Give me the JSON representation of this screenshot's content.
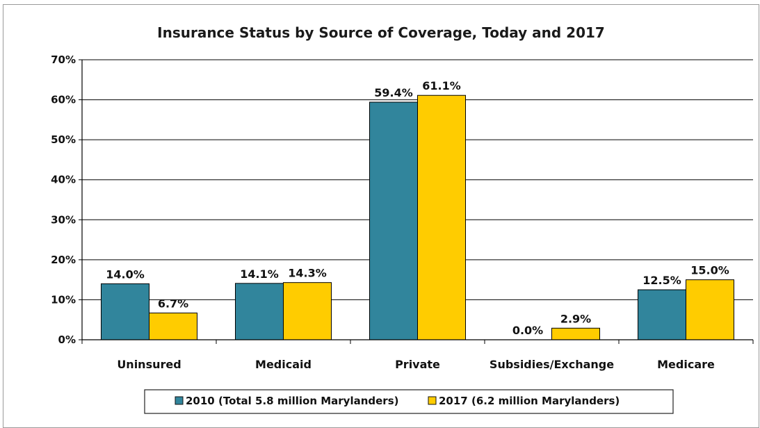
{
  "chart_data": {
    "type": "bar",
    "title": "Insurance Status by Source of Coverage, Today and 2017",
    "categories": [
      "Uninsured",
      "Medicaid",
      "Private",
      "Subsidies/Exchange",
      "Medicare"
    ],
    "series": [
      {
        "name": "2010 (Total 5.8 million Marylanders)",
        "color": "#31859c",
        "values": [
          14.0,
          14.1,
          59.4,
          0.0,
          12.5
        ],
        "labels": [
          "14.0%",
          "14.1%",
          "59.4%",
          "0.0%",
          "12.5%"
        ]
      },
      {
        "name": "2017 (6.2 million Marylanders)",
        "color": "#ffcc00",
        "values": [
          6.7,
          14.3,
          61.1,
          2.9,
          15.0
        ],
        "labels": [
          "6.7%",
          "14.3%",
          "61.1%",
          "2.9%",
          "15.0%"
        ]
      }
    ],
    "ylim": [
      0,
      70
    ],
    "yticks": [
      0,
      10,
      20,
      30,
      40,
      50,
      60,
      70
    ],
    "ytick_labels": [
      "0%",
      "10%",
      "20%",
      "30%",
      "40%",
      "50%",
      "60%",
      "70%"
    ],
    "xlabel": "",
    "ylabel": "",
    "grid": true,
    "legend_position": "bottom"
  }
}
